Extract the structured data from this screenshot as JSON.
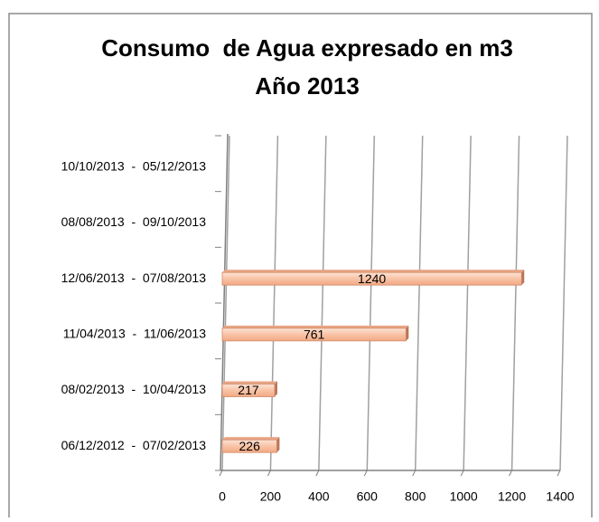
{
  "chart_data": {
    "type": "bar",
    "orientation": "horizontal",
    "title": "Consumo  de Agua expresado en m3",
    "subtitle": "Año 2013",
    "categories": [
      "10/10/2013  -  05/12/2013",
      "08/08/2013  -  09/10/2013",
      "12/06/2013  -  07/08/2013",
      "11/04/2013  -  11/06/2013",
      "08/02/2013  -  10/04/2013",
      "06/12/2012  -  07/02/2013"
    ],
    "values": [
      null,
      null,
      1240,
      761,
      217,
      226
    ],
    "color": "#f8c3a6",
    "xlim": [
      0,
      1400
    ],
    "xticks": [
      0,
      200,
      400,
      600,
      800,
      1000,
      1200,
      1400
    ],
    "grid": true
  }
}
